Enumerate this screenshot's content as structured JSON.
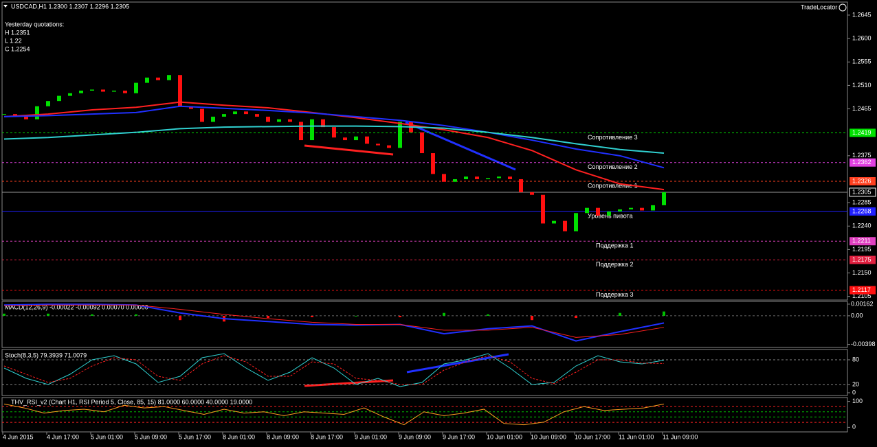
{
  "header": {
    "symbol": "USDCAD,H1  1.2300 1.2307 1.2296 1.2305",
    "yesterday": "Yesterday quotations:",
    "high": "H 1.2351",
    "low": "L 1.22",
    "close": "C 1.2254",
    "brand": "TradeLocator"
  },
  "main": {
    "ylim": [
      1.2098,
      1.267
    ],
    "yticks": [
      1.2645,
      {
        "value": 1.26,
        "label": "1.2600"
      },
      1.2555,
      {
        "value": 1.251,
        "label": "1.2510"
      },
      1.2465,
      1.2375,
      1.2285,
      {
        "value": 1.224,
        "label": "1.2240"
      },
      1.2195,
      {
        "value": 1.215,
        "label": "1.2150"
      },
      1.2105
    ],
    "levels": [
      {
        "name": "Сопротивление 3",
        "value": 1.2419,
        "color": "#00e000"
      },
      {
        "name": "Сопротивление 2",
        "value": 1.2362,
        "color": "#e040e0"
      },
      {
        "name": "Сопротивление 1",
        "value": 1.2326,
        "color": "#ff4020"
      },
      {
        "name": "Уровень пивота",
        "value": 1.2268,
        "color": "#2020ff"
      },
      {
        "name": "Поддержка 1",
        "value": 1.2211,
        "color": "#e040c0"
      },
      {
        "name": "Поддержка 2",
        "value": 1.2175,
        "color": "#e02040"
      },
      {
        "name": "Поддержка 3",
        "value": 1.2117,
        "color": "#ff1010"
      }
    ],
    "current": 1.2305,
    "closes": [
      1.2455,
      1.245,
      1.2445,
      1.247,
      1.248,
      1.249,
      1.2495,
      1.25,
      1.2502,
      1.2498,
      1.25,
      1.2495,
      1.2515,
      1.2525,
      1.252,
      1.253,
      1.247,
      1.2465,
      1.244,
      1.245,
      1.2455,
      1.246,
      1.2455,
      1.245,
      1.244,
      1.2445,
      1.244,
      1.2405,
      1.2445,
      1.243,
      1.241,
      1.2405,
      1.2412,
      1.2398,
      1.2395,
      1.239,
      1.244,
      1.242,
      1.238,
      1.234,
      1.2325,
      1.233,
      1.2335,
      1.233,
      1.2332,
      1.2335,
      1.233,
      1.2305,
      1.23,
      1.2245,
      1.225,
      1.223,
      1.2265,
      1.2275,
      1.226,
      1.2268,
      1.2272,
      1.2275,
      1.227,
      1.228,
      1.2305
    ],
    "mas": [
      {
        "color": "#ff2020",
        "values": [
          1.245,
          1.2455,
          1.2463,
          1.2468,
          1.2478,
          1.2472,
          1.2467,
          1.2458,
          1.2448,
          1.2437,
          1.2425,
          1.241,
          1.2385,
          1.2348,
          1.2321,
          1.231
        ]
      },
      {
        "color": "#2030ff",
        "values": [
          1.245,
          1.2452,
          1.2455,
          1.2458,
          1.247,
          1.2466,
          1.2462,
          1.2457,
          1.245,
          1.2443,
          1.2433,
          1.242,
          1.2405,
          1.2388,
          1.2375,
          1.2352
        ]
      },
      {
        "color": "#30d0d0",
        "values": [
          1.2407,
          1.241,
          1.2415,
          1.242,
          1.2427,
          1.243,
          1.2431,
          1.2432,
          1.2432,
          1.2431,
          1.2428,
          1.242,
          1.241,
          1.2398,
          1.2387,
          1.238
        ]
      }
    ]
  },
  "macd": {
    "title": "MACD(12,26,9) -0.00022 -0.00092 0.00070 0.00000",
    "ylim": [
      -0.0043,
      0.0019
    ],
    "yticks": [
      0.00162,
      {
        "value": 0,
        "label": "0.00"
      },
      -0.00398
    ],
    "hist": [
      0.0003,
      0.0003,
      0.0002,
      0.0002,
      -0.0006,
      -0.0008,
      -0.0003,
      -0.0002,
      0,
      -0.0002,
      0.0004,
      0.0002,
      -0.0006,
      -0.0003,
      0.0004,
      0.0006
    ],
    "main": [
      0.0015,
      0.0016,
      0.0016,
      0.0015,
      0.0004,
      -0.0004,
      -0.0008,
      -0.0012,
      -0.0013,
      -0.0012,
      -0.0025,
      -0.0018,
      -0.0014,
      -0.0035,
      -0.0022,
      -0.001
    ],
    "signal": [
      0.0014,
      0.0015,
      0.0015,
      0.0015,
      0.0009,
      0.0002,
      -0.0004,
      -0.0009,
      -0.0012,
      -0.0012,
      -0.002,
      -0.002,
      -0.0016,
      -0.003,
      -0.0026,
      -0.0016
    ]
  },
  "stoch": {
    "title": "Stoch(8,3,5) 79.3939 71.0079",
    "ylim": [
      -5,
      105
    ],
    "yticks": [
      80,
      20,
      0
    ],
    "main": [
      60,
      35,
      20,
      45,
      80,
      90,
      70,
      25,
      40,
      85,
      95,
      60,
      30,
      50,
      85,
      60,
      20,
      35,
      15,
      25,
      70,
      80,
      95,
      60,
      20,
      25,
      65,
      90,
      75,
      70,
      79
    ],
    "signal": [
      65,
      45,
      25,
      35,
      65,
      85,
      80,
      40,
      30,
      70,
      90,
      75,
      40,
      40,
      75,
      70,
      35,
      30,
      20,
      20,
      55,
      75,
      90,
      75,
      35,
      22,
      50,
      80,
      80,
      72,
      71
    ]
  },
  "rsi": {
    "title": "THV_RSI_v2  (Chart H1, RSI Period 5, Close, 85, 15) 81.0000 60.0000 40.0000 19.0000",
    "ylim": [
      -15,
      115
    ],
    "yticks": [
      100,
      0
    ],
    "levels": [
      81,
      60,
      40,
      19
    ],
    "values": [
      90,
      75,
      55,
      65,
      70,
      60,
      85,
      75,
      80,
      65,
      50,
      70,
      55,
      60,
      45,
      60,
      55,
      50,
      75,
      40,
      10,
      60,
      45,
      55,
      70,
      15,
      10,
      20,
      60,
      80,
      65,
      70,
      75,
      90
    ]
  },
  "times": [
    "4 Jun 2015",
    "4 Jun 17:00",
    "5 Jun 01:00",
    "5 Jun 09:00",
    "5 Jun 17:00",
    "8 Jun 01:00",
    "8 Jun 09:00",
    "8 Jun 17:00",
    "9 Jun 01:00",
    "9 Jun 09:00",
    "9 Jun 17:00",
    "10 Jun 01:00",
    "10 Jun 09:00",
    "10 Jun 17:00",
    "11 Jun 01:00",
    "11 Jun 09:00"
  ]
}
